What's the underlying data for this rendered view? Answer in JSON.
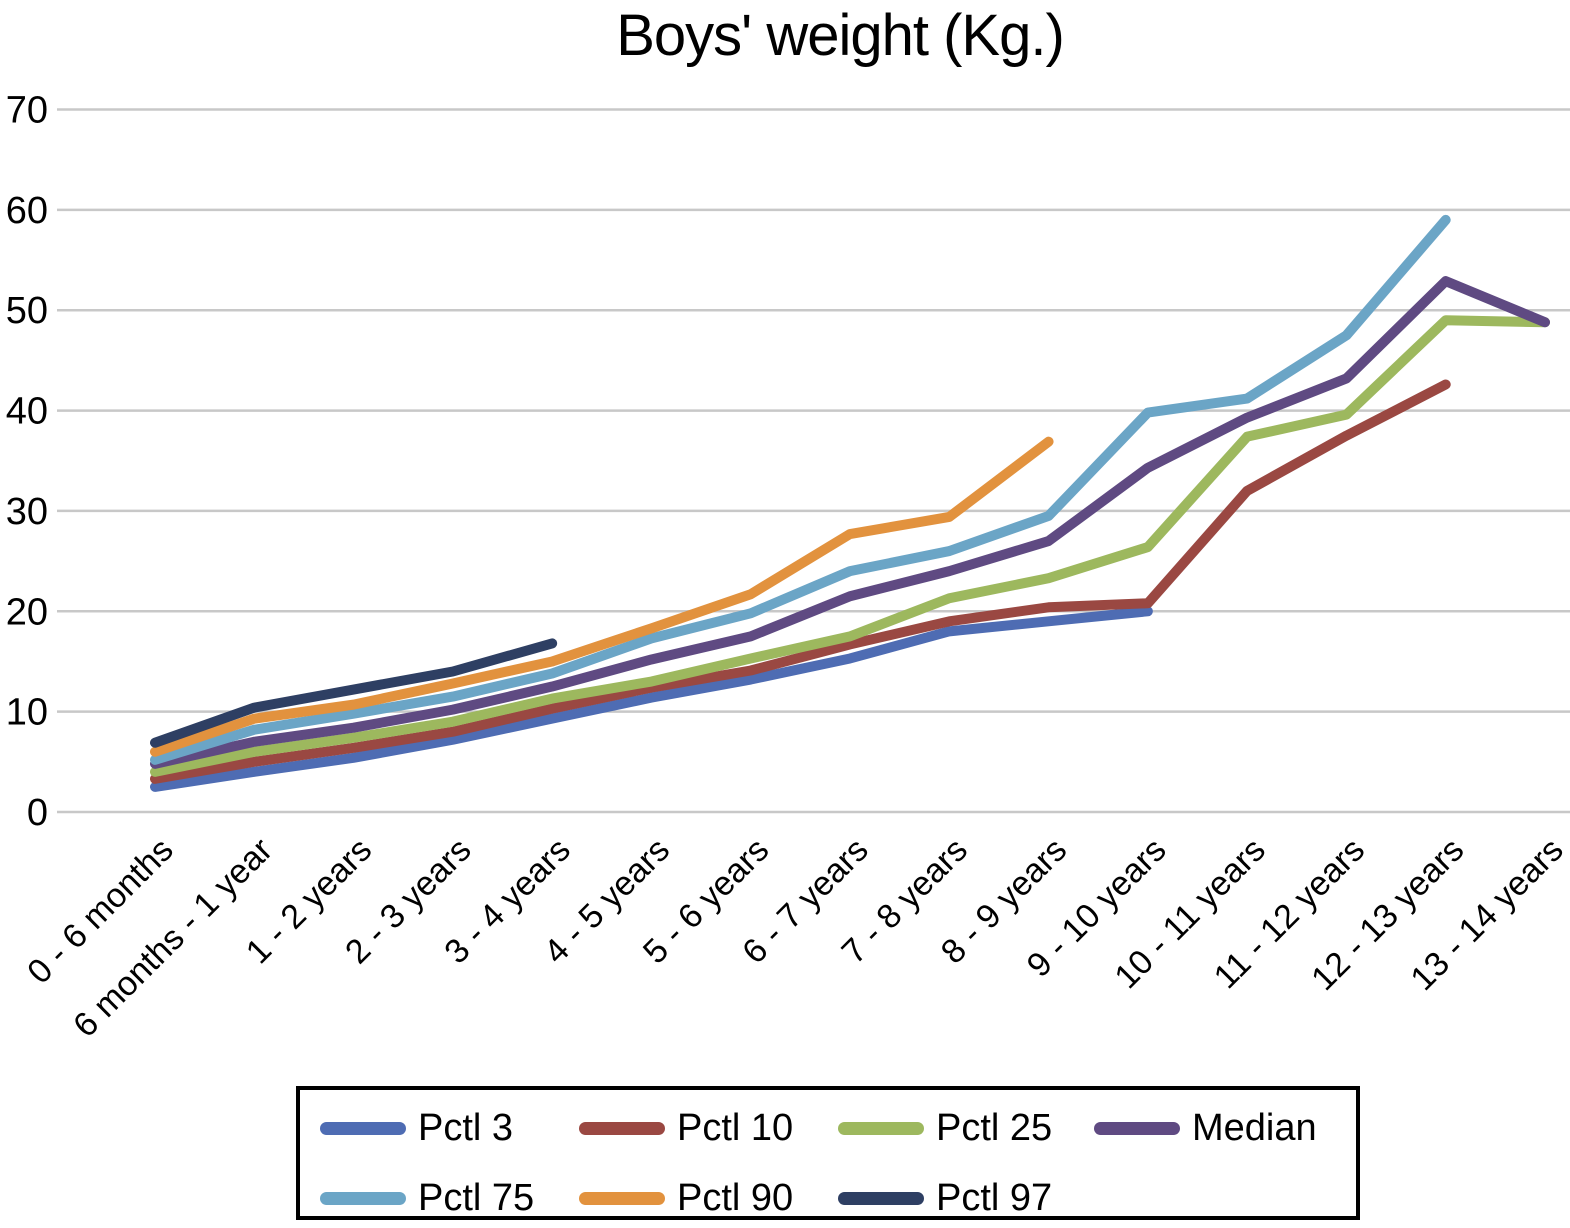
{
  "title": "Boys' weight (Kg.)",
  "colors": {
    "grid": "#C8C8C8",
    "text": "#000000",
    "background": "#FFFFFF",
    "legend_border": "#000000"
  },
  "chart_data": {
    "type": "line",
    "title": "Boys' weight (Kg.)",
    "xlabel": "",
    "ylabel": "",
    "categories": [
      "0 - 6 months",
      "6 months - 1 year",
      "1 - 2 years",
      "2 - 3 years",
      "3 - 4 years",
      "4 - 5 years",
      "5 - 6 years",
      "6 - 7 years",
      "7 - 8 years",
      "8 - 9 years",
      "9 - 10 years",
      "10 - 11 years",
      "11 - 12 years",
      "12 - 13 years",
      "13 - 14 years"
    ],
    "series": [
      {
        "name": "Pctl 3",
        "color": "#4E6CB3",
        "values": [
          2.5,
          4.0,
          5.4,
          7.2,
          9.3,
          11.4,
          13.2,
          15.3,
          18.0,
          19.0,
          20.0,
          null,
          null,
          null,
          null
        ]
      },
      {
        "name": "Pctl 10",
        "color": "#9A4842",
        "values": [
          3.3,
          5.0,
          6.4,
          8.0,
          10.3,
          12.4,
          14.1,
          16.7,
          19.0,
          20.4,
          20.8,
          32.0,
          37.5,
          42.6,
          null
        ]
      },
      {
        "name": "Pctl 25",
        "color": "#9DB85E",
        "values": [
          4.0,
          6.0,
          7.4,
          9.0,
          11.3,
          13.0,
          15.3,
          17.5,
          21.3,
          23.3,
          26.4,
          37.4,
          39.6,
          49.0,
          48.8
        ]
      },
      {
        "name": "Median",
        "color": "#5F4A82",
        "values": [
          4.8,
          7.0,
          8.4,
          10.2,
          12.5,
          15.2,
          17.5,
          21.5,
          24.0,
          27.0,
          34.3,
          39.3,
          43.2,
          52.9,
          48.8
        ]
      },
      {
        "name": "Pctl 75",
        "color": "#6BA5C6",
        "values": [
          5.2,
          8.2,
          9.8,
          11.5,
          13.8,
          17.3,
          19.8,
          24.0,
          26.0,
          29.5,
          39.8,
          41.2,
          47.5,
          59.0,
          null
        ]
      },
      {
        "name": "Pctl 90",
        "color": "#E2923E",
        "values": [
          6.0,
          9.3,
          10.7,
          12.8,
          15.0,
          18.3,
          21.7,
          27.7,
          29.4,
          36.9,
          null,
          null,
          null,
          null,
          null
        ]
      },
      {
        "name": "Pctl 97",
        "color": "#2E3F63",
        "values": [
          6.9,
          10.4,
          12.2,
          14.0,
          16.8,
          null,
          null,
          null,
          null,
          null,
          null,
          null,
          null,
          null,
          null
        ]
      }
    ],
    "ylim": [
      0,
      70
    ],
    "yticks": [
      70,
      60,
      50,
      40,
      30,
      20,
      10,
      0
    ],
    "grid": "horizontal",
    "x_axis_label_rotation_deg": -45,
    "legend_position": "bottom",
    "legend_rows": [
      [
        "Pctl 3",
        "Pctl 10",
        "Pctl 25",
        "Median"
      ],
      [
        "Pctl 75",
        "Pctl 90",
        "Pctl 97"
      ]
    ]
  }
}
